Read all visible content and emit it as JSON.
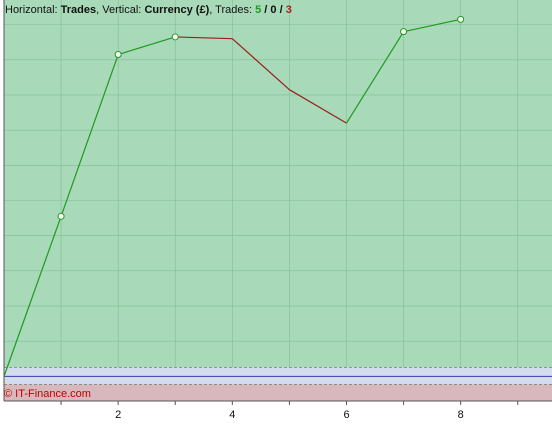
{
  "header": {
    "horizontal_label": "Horizontal:",
    "horizontal_value": "Trades",
    "vertical_label": "Vertical:",
    "vertical_value": "Currency (£)",
    "trades_label": "Trades:",
    "trades_win": "5",
    "trades_neutral": "0",
    "trades_loss": "3",
    "sep": " / ",
    "comma": ", "
  },
  "watermark": "© IT-Finance.com",
  "colors": {
    "profit_zone": "#a8d9b8",
    "loss_zone": "#d8b8bc",
    "neutral_band": "#d4dcef",
    "gridline": "#7fbf94",
    "up_segment": "#1f9a1f",
    "down_segment": "#9a1f1f",
    "baseline": "#3a3aa8",
    "marker_fill": "#ffffff",
    "trades_win": "#1f9a1f",
    "trades_loss": "#b01c1c"
  },
  "chart_data": {
    "type": "line",
    "x": [
      0,
      1,
      2,
      3,
      4,
      5,
      6,
      7,
      8
    ],
    "y": [
      0,
      91,
      183,
      193,
      192,
      163,
      144,
      196,
      203
    ],
    "markers_at_x": [
      1,
      2,
      3,
      7,
      8
    ],
    "segment_direction": [
      "up",
      "up",
      "up",
      "down",
      "down",
      "down",
      "up",
      "up"
    ],
    "xticks": [
      2,
      4,
      6,
      8
    ],
    "xlim": [
      0,
      9.6
    ],
    "ylim": [
      -14,
      214
    ],
    "baseline": 0,
    "title": "",
    "xlabel": "Trades",
    "ylabel": "Currency (£)",
    "grid": true
  }
}
